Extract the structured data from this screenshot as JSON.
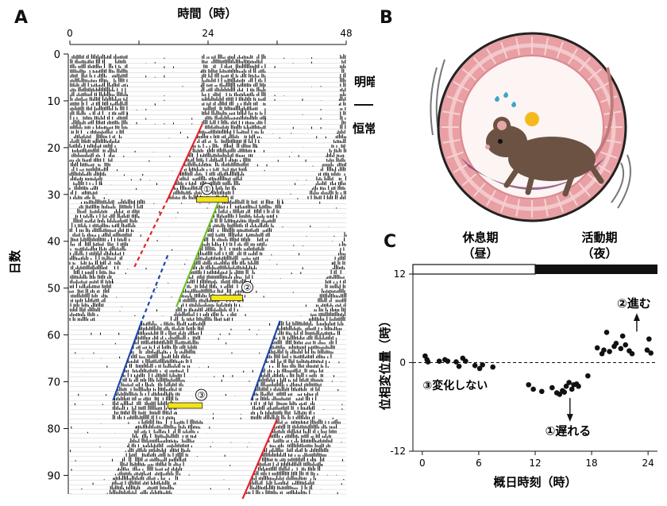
{
  "panels": {
    "a": "A",
    "b": "B",
    "c": "C"
  },
  "panel_a": {
    "xlabel": "時間（時）",
    "ylabel": "日数",
    "x_ticks": [
      "0",
      "24",
      "48"
    ],
    "y_ticks": [
      "0",
      "10",
      "20",
      "30",
      "40",
      "50",
      "60",
      "70",
      "80",
      "90"
    ],
    "condition_top": "明暗",
    "condition_bottom": "恒常暗",
    "markers": [
      {
        "label": "①",
        "day": 30.5,
        "hour": 23
      },
      {
        "label": "②",
        "day": 51.5,
        "hour": 30
      },
      {
        "label": "③",
        "day": 74.5,
        "hour": 22
      }
    ]
  },
  "chart_data": [
    {
      "type": "heatmap",
      "description_source": "double-plotted actogram",
      "x_range_hours": [
        0,
        48
      ],
      "y_range_days": [
        0,
        94
      ],
      "onset_segments": [
        {
          "color": "#e8202a",
          "days": [
            15,
            31
          ],
          "onset_hour_start": 23,
          "onset_hour_end": 17
        },
        {
          "color": "#e8202a",
          "style": "dashed",
          "days": [
            31,
            46
          ],
          "onset_hour_start": 17,
          "onset_hour_end": 11
        },
        {
          "color": "#6cbf2a",
          "days": [
            31,
            54
          ],
          "onset_hour_start": 26,
          "onset_hour_end": 18.5
        },
        {
          "color": "#2048a8",
          "style": "dashed",
          "days": [
            43,
            57
          ],
          "onset_hour_start": 17,
          "onset_hour_end": 12.5
        },
        {
          "color": "#2048a8",
          "days": [
            57,
            74
          ],
          "onset_hour_start": 12.5,
          "onset_hour_end": 7.5
        },
        {
          "color": "#2048a8",
          "days": [
            57,
            74
          ],
          "onset_hour_start": 36.5,
          "onset_hour_end": 31.5
        },
        {
          "color": "#e8202a",
          "days": [
            78,
            95
          ],
          "onset_hour_start": 36,
          "onset_hour_end": 30
        }
      ],
      "pulse_bars": [
        {
          "day": 31,
          "hour_start": 22,
          "hour_end": 27.5
        },
        {
          "day": 52,
          "hour_start": 24.5,
          "hour_end": 30
        },
        {
          "day": 75,
          "hour_start": 17,
          "hour_end": 23
        }
      ]
    },
    {
      "type": "scatter",
      "xlabel": "概日時刻（時）",
      "ylabel": "位相変位量（時）",
      "x_ticks": [
        0,
        6,
        12,
        18,
        24
      ],
      "y_ticks": [
        12,
        0,
        -12
      ],
      "xlim": [
        -1,
        25
      ],
      "ylim": [
        -12,
        12
      ],
      "phase_bar": {
        "rest": "休息期\n（昼）",
        "active": "活動期\n（夜）",
        "switch_time": 12
      },
      "annotations": [
        {
          "text": "②進む",
          "x": 22.5,
          "y": 7.5
        },
        {
          "text": "①遅れる",
          "x": 15.5,
          "y": -9.8
        },
        {
          "text": "③変化しない",
          "x": 3.5,
          "y": -3.6
        }
      ],
      "points": [
        [
          0.3,
          0.9
        ],
        [
          0.5,
          0.4
        ],
        [
          0.6,
          0.1
        ],
        [
          1.8,
          0.2
        ],
        [
          2.4,
          0.4
        ],
        [
          2.7,
          0.2
        ],
        [
          3.6,
          0.1
        ],
        [
          3.9,
          -0.5
        ],
        [
          4.3,
          0.6
        ],
        [
          4.6,
          0.2
        ],
        [
          5.6,
          -0.4
        ],
        [
          6.1,
          -0.8
        ],
        [
          6.4,
          -0.3
        ],
        [
          7.5,
          -0.6
        ],
        [
          11.3,
          -3.0
        ],
        [
          11.8,
          -3.6
        ],
        [
          12.7,
          -3.9
        ],
        [
          13.8,
          -3.4
        ],
        [
          14.3,
          -4.1
        ],
        [
          14.6,
          -4.3
        ],
        [
          14.9,
          -3.8
        ],
        [
          15.1,
          -4.0
        ],
        [
          15.3,
          -3.2
        ],
        [
          15.6,
          -2.7
        ],
        [
          15.9,
          -3.6
        ],
        [
          16.1,
          -3.0
        ],
        [
          16.4,
          -2.9
        ],
        [
          16.6,
          -3.2
        ],
        [
          17.6,
          -1.8
        ],
        [
          18.6,
          2.0
        ],
        [
          19.1,
          1.2
        ],
        [
          19.3,
          1.7
        ],
        [
          19.6,
          4.1
        ],
        [
          19.9,
          1.5
        ],
        [
          20.4,
          2.2
        ],
        [
          20.6,
          2.6
        ],
        [
          21.1,
          1.9
        ],
        [
          21.3,
          3.6
        ],
        [
          21.6,
          2.4
        ],
        [
          22.0,
          1.6
        ],
        [
          22.3,
          1.2
        ],
        [
          23.9,
          1.7
        ],
        [
          24.1,
          3.2
        ],
        [
          24.3,
          1.3
        ]
      ]
    }
  ]
}
